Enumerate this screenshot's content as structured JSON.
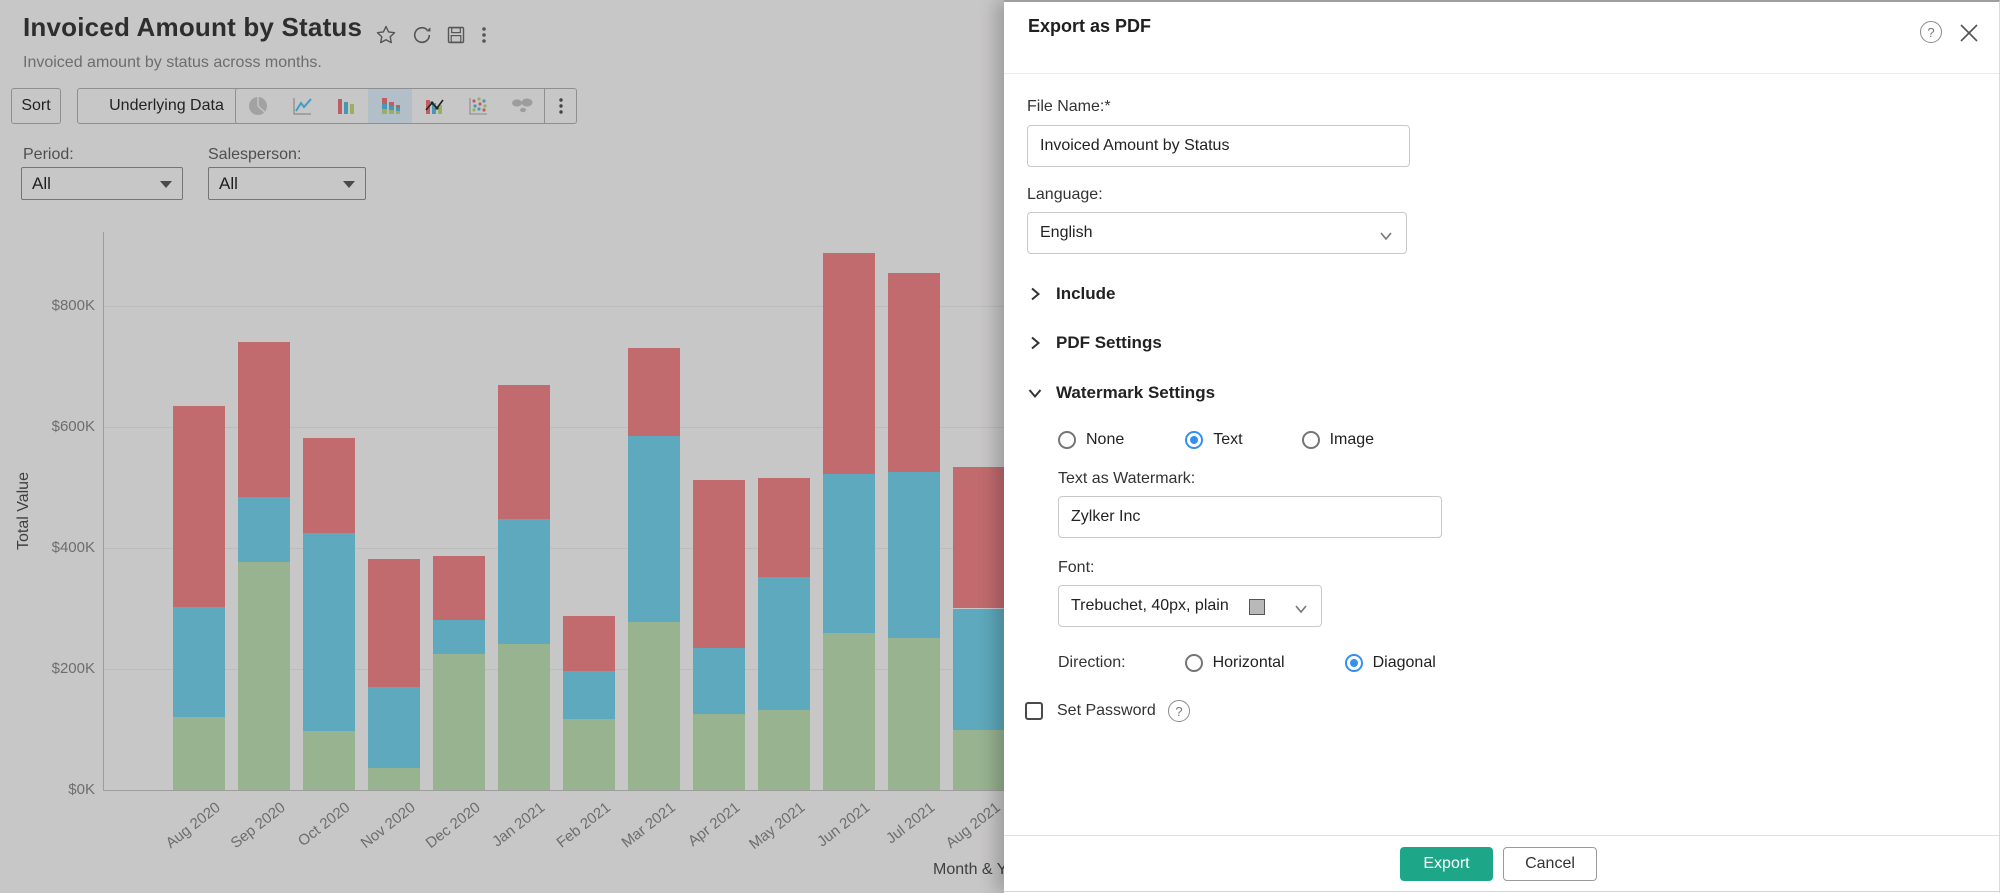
{
  "header": {
    "title": "Invoiced Amount by Status",
    "subtitle": "Invoiced amount by status across months.",
    "icons": [
      "star-icon",
      "refresh-icon",
      "save-icon",
      "more-options-icon"
    ]
  },
  "toolbar": {
    "sort_label": "Sort",
    "underlying_data_label": "Underlying Data",
    "chart_types": [
      "pie",
      "line",
      "bar",
      "stacked-bar",
      "bar-line-combo",
      "scatter",
      "map",
      "more"
    ],
    "selected_chart_type": "stacked-bar",
    "selected_bg_color": "#b2bfc9"
  },
  "filters": [
    {
      "label": "Period:",
      "value": "All"
    },
    {
      "label": "Salesperson:",
      "value": "All"
    }
  ],
  "chart_data": {
    "type": "bar",
    "stacked": true,
    "xlabel": "Month & Y",
    "ylabel": "Total Value",
    "unit": "K",
    "categories": [
      "Aug 2020",
      "Sep 2020",
      "Oct 2020",
      "Nov 2020",
      "Dec 2020",
      "Jan 2021",
      "Feb 2021",
      "Mar 2021",
      "Apr 2021",
      "May 2021",
      "Jun 2021",
      "Jul 2021",
      "Aug 2021"
    ],
    "series": [
      {
        "name": "green",
        "color": "#97b390",
        "values": [
          120,
          377,
          98,
          36,
          225,
          241,
          117,
          278,
          125,
          133,
          259,
          251,
          100
        ]
      },
      {
        "name": "blue",
        "color": "#5ea9bd",
        "values": [
          182,
          108,
          326,
          134,
          56,
          207,
          79,
          307,
          109,
          219,
          263,
          275,
          200
        ]
      },
      {
        "name": "red",
        "color": "#c16b6e",
        "values": [
          333,
          256,
          157,
          211,
          105,
          222,
          92,
          146,
          278,
          163,
          366,
          328,
          234
        ]
      }
    ],
    "y_ticks": [
      {
        "label": "$0K",
        "value": 0
      },
      {
        "label": "$200K",
        "value": 200
      },
      {
        "label": "$400K",
        "value": 400
      },
      {
        "label": "$600K",
        "value": 600
      },
      {
        "label": "$800K",
        "value": 800
      }
    ],
    "ylim": [
      0,
      930
    ],
    "grid": true,
    "legend": "hidden"
  },
  "modal": {
    "title": "Export as PDF",
    "help_glyph": "?",
    "file_name": {
      "label": "File Name:*",
      "value": "Invoiced Amount by Status"
    },
    "language": {
      "label": "Language:",
      "value": "English"
    },
    "sections": [
      {
        "label": "Include",
        "expanded": false
      },
      {
        "label": "PDF Settings",
        "expanded": false
      },
      {
        "label": "Watermark Settings",
        "expanded": true
      }
    ],
    "watermark": {
      "type_options": [
        {
          "label": "None",
          "selected": false
        },
        {
          "label": "Text",
          "selected": true
        },
        {
          "label": "Image",
          "selected": false
        }
      ],
      "text_label": "Text as Watermark:",
      "text_value": "Zylker Inc",
      "font_label": "Font:",
      "font_value": "Trebuchet, 40px, plain",
      "direction_label": "Direction:",
      "direction_options": [
        {
          "label": "Horizontal",
          "selected": false
        },
        {
          "label": "Diagonal",
          "selected": true
        }
      ]
    },
    "set_password_label": "Set Password",
    "footer": {
      "export_label": "Export",
      "cancel_label": "Cancel"
    },
    "accent_color": "#1ea689",
    "radio_color": "#3390f0"
  }
}
